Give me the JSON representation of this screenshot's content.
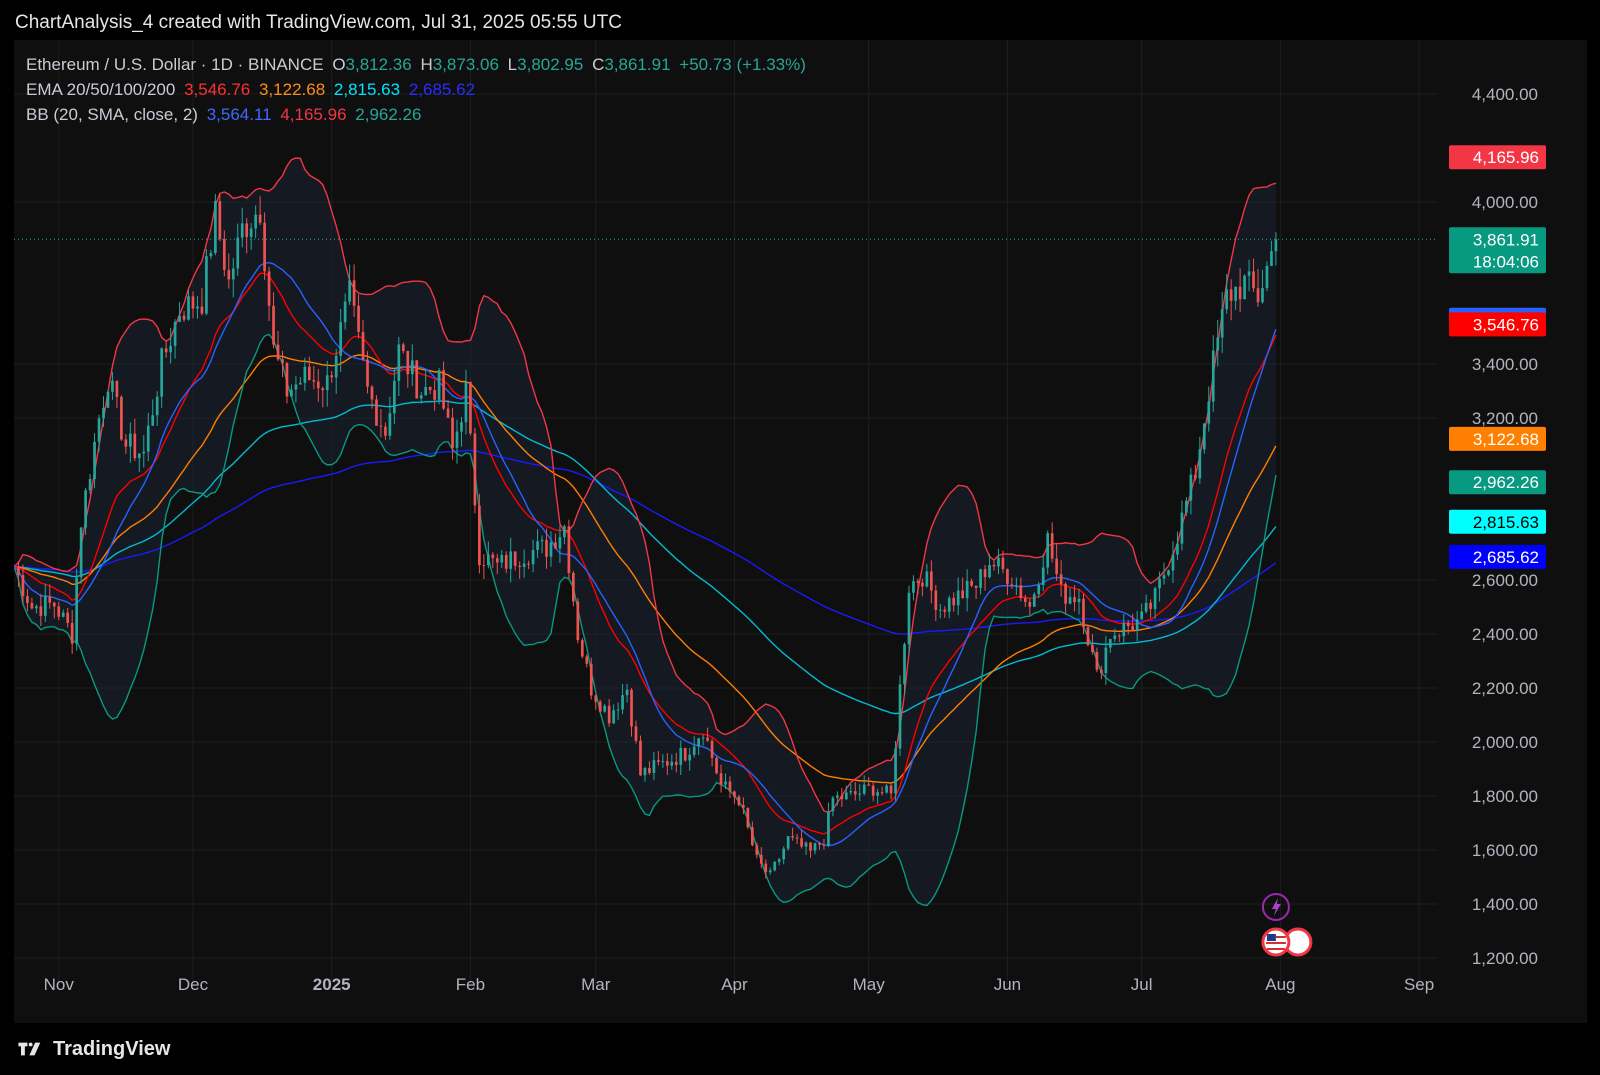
{
  "header": {
    "attribution": "ChartAnalysis_4 created with TradingView.com, Jul 31, 2025 05:55 UTC"
  },
  "legend": {
    "symbol": "Ethereum / U.S. Dollar · 1D · BINANCE",
    "o_label": "O",
    "o_value": "3,812.36",
    "h_label": "H",
    "h_value": "3,873.06",
    "l_label": "L",
    "l_value": "3,802.95",
    "c_label": "C",
    "c_value": "3,861.91",
    "change": "+50.73 (+1.33%)",
    "ema_label": "EMA 20/50/100/200",
    "ema20": "3,546.76",
    "ema50": "3,122.68",
    "ema100": "2,815.63",
    "ema200": "2,685.62",
    "bb_label": "BB (20, SMA, close, 2)",
    "bb_basis": "3,564.11",
    "bb_upper": "4,165.96",
    "bb_lower": "2,962.26"
  },
  "footer": {
    "brand": "TradingView"
  },
  "price_tags": [
    {
      "value": 4165.96,
      "label": "4,165.96",
      "color": "#f23645"
    },
    {
      "value": 3861.91,
      "label": "3,861.91",
      "sub": "18:04:06",
      "color": "#089981"
    },
    {
      "value": 3564.11,
      "label": "3,564.11",
      "color": "#2962ff"
    },
    {
      "value": 3546.76,
      "label": "3,546.76",
      "color": "#ff0000"
    },
    {
      "value": 3122.68,
      "label": "3,122.68",
      "color": "#ff7f00"
    },
    {
      "value": 2962.26,
      "label": "2,962.26",
      "color": "#089981"
    },
    {
      "value": 2815.63,
      "label": "2,815.63",
      "color": "#00ffff"
    },
    {
      "value": 2685.62,
      "label": "2,685.62",
      "color": "#0000ff"
    }
  ],
  "colors": {
    "up": "#26a69a",
    "down": "#ef5350",
    "ema20": "#ff0000",
    "ema50": "#ff7f00",
    "ema100": "#00bcd4",
    "ema200": "#1a1aff",
    "bb_basis": "#2962ff",
    "bb_upper": "#f23645",
    "bb_lower": "#089981"
  },
  "chart_data": {
    "type": "candlestick",
    "title": "Ethereum / U.S. Dollar · 1D · BINANCE",
    "y_ticks": [
      1200,
      1400,
      1600,
      1800,
      2000,
      2200,
      2400,
      2600,
      3200,
      3400,
      4000,
      4400
    ],
    "y_tick_labels": [
      "1,200.00",
      "1,400.00",
      "1,600.00",
      "1,800.00",
      "2,000.00",
      "2,200.00",
      "2,400.00",
      "2,600.00",
      "3,200.00",
      "3,400.00",
      "4,000.00",
      "4,400.00"
    ],
    "x_labels": [
      "Nov",
      "Dec",
      "2025",
      "Feb",
      "Mar",
      "Apr",
      "May",
      "Jun",
      "Jul",
      "Aug",
      "Sep"
    ],
    "x_dates": [
      "2024-11-01",
      "2024-12-01",
      "2025-01-01",
      "2025-02-01",
      "2025-03-01",
      "2025-04-01",
      "2025-05-01",
      "2025-06-01",
      "2025-07-01",
      "2025-08-01",
      "2025-09-01"
    ],
    "ylim": [
      1100,
      4600
    ],
    "xlim": [
      "2024-10-22",
      "2025-09-05"
    ],
    "close_series": {
      "start": "2024-10-22",
      "anchors": [
        [
          "2024-10-22",
          2650
        ],
        [
          "2024-10-26",
          2500
        ],
        [
          "2024-10-31",
          2510
        ],
        [
          "2024-11-04",
          2400
        ],
        [
          "2024-11-06",
          2820
        ],
        [
          "2024-11-10",
          3200
        ],
        [
          "2024-11-12",
          3350
        ],
        [
          "2024-11-16",
          3100
        ],
        [
          "2024-11-20",
          3070
        ],
        [
          "2024-11-24",
          3400
        ],
        [
          "2024-11-28",
          3600
        ],
        [
          "2024-12-03",
          3640
        ],
        [
          "2024-12-06",
          3950
        ],
        [
          "2024-12-09",
          3700
        ],
        [
          "2024-12-12",
          3900
        ],
        [
          "2024-12-16",
          3980
        ],
        [
          "2024-12-19",
          3450
        ],
        [
          "2024-12-22",
          3300
        ],
        [
          "2024-12-26",
          3350
        ],
        [
          "2024-12-31",
          3330
        ],
        [
          "2025-01-05",
          3650
        ],
        [
          "2025-01-09",
          3300
        ],
        [
          "2025-01-13",
          3150
        ],
        [
          "2025-01-16",
          3450
        ],
        [
          "2025-01-21",
          3300
        ],
        [
          "2025-01-25",
          3320
        ],
        [
          "2025-01-28",
          3080
        ],
        [
          "2025-01-31",
          3300
        ],
        [
          "2025-02-03",
          2700
        ],
        [
          "2025-02-07",
          2650
        ],
        [
          "2025-02-13",
          2700
        ],
        [
          "2025-02-18",
          2720
        ],
        [
          "2025-02-22",
          2800
        ],
        [
          "2025-02-25",
          2400
        ],
        [
          "2025-02-28",
          2200
        ],
        [
          "2025-03-04",
          2100
        ],
        [
          "2025-03-08",
          2200
        ],
        [
          "2025-03-11",
          1880
        ],
        [
          "2025-03-16",
          1920
        ],
        [
          "2025-03-21",
          1960
        ],
        [
          "2025-03-25",
          2050
        ],
        [
          "2025-03-29",
          1840
        ],
        [
          "2025-04-02",
          1790
        ],
        [
          "2025-04-06",
          1560
        ],
        [
          "2025-04-09",
          1500
        ],
        [
          "2025-04-13",
          1640
        ],
        [
          "2025-04-18",
          1590
        ],
        [
          "2025-04-21",
          1640
        ],
        [
          "2025-04-23",
          1790
        ],
        [
          "2025-04-27",
          1800
        ],
        [
          "2025-05-02",
          1830
        ],
        [
          "2025-05-06",
          1800
        ],
        [
          "2025-05-08",
          2200
        ],
        [
          "2025-05-10",
          2580
        ],
        [
          "2025-05-13",
          2620
        ],
        [
          "2025-05-17",
          2500
        ],
        [
          "2025-05-21",
          2540
        ],
        [
          "2025-05-25",
          2580
        ],
        [
          "2025-05-28",
          2670
        ],
        [
          "2025-06-02",
          2610
        ],
        [
          "2025-06-06",
          2500
        ],
        [
          "2025-06-10",
          2750
        ],
        [
          "2025-06-13",
          2550
        ],
        [
          "2025-06-17",
          2540
        ],
        [
          "2025-06-21",
          2240
        ],
        [
          "2025-06-24",
          2400
        ],
        [
          "2025-06-28",
          2430
        ],
        [
          "2025-07-01",
          2450
        ],
        [
          "2025-07-04",
          2530
        ],
        [
          "2025-07-09",
          2770
        ],
        [
          "2025-07-13",
          3000
        ],
        [
          "2025-07-17",
          3400
        ],
        [
          "2025-07-20",
          3650
        ],
        [
          "2025-07-24",
          3700
        ],
        [
          "2025-07-27",
          3650
        ],
        [
          "2025-07-31",
          3861.91
        ]
      ]
    },
    "series": [
      {
        "name": "EMA 20",
        "last": 3546.76
      },
      {
        "name": "EMA 50",
        "last": 3122.68
      },
      {
        "name": "EMA 100",
        "last": 2815.63
      },
      {
        "name": "EMA 200",
        "last": 2685.62
      },
      {
        "name": "BB basis",
        "last": 3564.11
      },
      {
        "name": "BB upper",
        "last": 4165.96
      },
      {
        "name": "BB lower",
        "last": 2962.26
      }
    ],
    "last_price": 3861.91,
    "grid": true
  }
}
